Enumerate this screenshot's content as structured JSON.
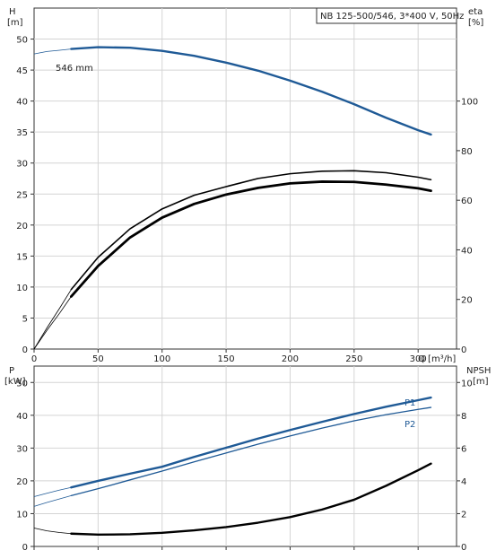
{
  "chart_data": {
    "type": "line",
    "title": "NB 125-500/546, 3*400 V, 50Hz",
    "colors": {
      "blue": "#1f5a96",
      "black": "#000000",
      "grid": "#d4d4d4"
    },
    "panels": [
      {
        "id": "top",
        "x_axis": {
          "label": "Q [m³/h]",
          "ticks": [
            0,
            50,
            100,
            150,
            200,
            250,
            300
          ],
          "range": [
            0,
            330
          ]
        },
        "left_axis": {
          "label_line1": "H",
          "label_line2": "[m]",
          "ticks": [
            0,
            5,
            10,
            15,
            20,
            25,
            30,
            35,
            40,
            45,
            50
          ],
          "range": [
            0,
            55
          ]
        },
        "right_axis": {
          "label_line1": "eta",
          "label_line2": "[%]",
          "ticks": [
            0,
            20,
            40,
            60,
            80,
            100
          ],
          "range": [
            0,
            137.5
          ]
        },
        "annotation": "546 mm",
        "series": [
          {
            "axis": "left",
            "color": "#1f5a96",
            "width": 2.4,
            "thin_x": [
              0,
              10,
              20,
              29
            ],
            "thin_y": [
              47.6,
              48.0,
              48.2,
              48.4
            ],
            "x": [
              29,
              50,
              75,
              100,
              125,
              150,
              175,
              200,
              225,
              250,
              275,
              300,
              310
            ],
            "y": [
              48.4,
              48.7,
              48.6,
              48.1,
              47.3,
              46.2,
              44.9,
              43.3,
              41.5,
              39.5,
              37.3,
              35.3,
              34.6
            ]
          },
          {
            "axis": "right",
            "color": "#000000",
            "width": 1.6,
            "thin_x": [
              0,
              10,
              20,
              29
            ],
            "thin_y": [
              0,
              8.5,
              16.5,
              24
            ],
            "x": [
              29,
              50,
              75,
              100,
              125,
              150,
              175,
              200,
              225,
              250,
              275,
              300,
              310
            ],
            "y": [
              24,
              37,
              48.5,
              56.5,
              62,
              65.5,
              68.8,
              70.7,
              71.7,
              71.9,
              71.1,
              69.3,
              68.3
            ]
          },
          {
            "axis": "right",
            "color": "#000000",
            "width": 2.8,
            "thin_x": [
              0,
              10,
              20,
              29
            ],
            "thin_y": [
              0,
              7.5,
              14.5,
              21.2
            ],
            "x": [
              29,
              50,
              75,
              100,
              125,
              150,
              175,
              200,
              225,
              250,
              275,
              300,
              310
            ],
            "y": [
              21.2,
              33.5,
              45,
              53,
              58.5,
              62.3,
              65,
              66.8,
              67.5,
              67.4,
              66.3,
              64.8,
              63.8
            ]
          }
        ]
      },
      {
        "id": "bottom",
        "x_axis": {
          "ticks": [
            0,
            50,
            100,
            150,
            200,
            250,
            300
          ],
          "range": [
            0,
            330
          ]
        },
        "left_axis": {
          "label_line1": "P",
          "label_line2": "[kW]",
          "ticks": [
            0,
            10,
            20,
            30,
            40,
            50
          ],
          "range": [
            0,
            55
          ]
        },
        "right_axis": {
          "label_line1": "NPSH",
          "label_line2": "[m]",
          "ticks": [
            0,
            2,
            4,
            6,
            8,
            10
          ],
          "range": [
            0,
            11
          ]
        },
        "series": [
          {
            "name": "P1",
            "axis": "left",
            "color": "#1f5a96",
            "width": 2.4,
            "thin_x": [
              0,
              10,
              20,
              29
            ],
            "thin_y": [
              15.2,
              16.2,
              17.2,
              18.0
            ],
            "x": [
              29,
              50,
              75,
              100,
              125,
              150,
              175,
              200,
              225,
              250,
              275,
              300,
              310
            ],
            "y": [
              18.0,
              20.0,
              22.2,
              24.3,
              27.3,
              30.1,
              32.9,
              35.5,
              38.0,
              40.4,
              42.6,
              44.6,
              45.4
            ]
          },
          {
            "name": "P2",
            "axis": "left",
            "color": "#1f5a96",
            "width": 1.3,
            "thin_x": [
              0,
              10,
              20,
              29
            ],
            "thin_y": [
              12.2,
              13.4,
              14.5,
              15.5
            ],
            "x": [
              29,
              50,
              75,
              100,
              125,
              150,
              175,
              200,
              225,
              250,
              275,
              300,
              310
            ],
            "y": [
              15.5,
              17.6,
              20.3,
              23.0,
              25.8,
              28.5,
              31.2,
              33.7,
              36.1,
              38.3,
              40.2,
              41.8,
              42.4
            ]
          },
          {
            "axis": "right",
            "color": "#000000",
            "width": 2.4,
            "thin_x": [
              0,
              10,
              20,
              29
            ],
            "thin_y": [
              1.12,
              0.95,
              0.85,
              0.78
            ],
            "x": [
              29,
              50,
              75,
              100,
              125,
              150,
              175,
              200,
              225,
              250,
              275,
              300,
              310
            ],
            "y": [
              0.78,
              0.72,
              0.74,
              0.83,
              0.98,
              1.18,
              1.45,
              1.79,
              2.25,
              2.85,
              3.7,
              4.65,
              5.05
            ]
          }
        ]
      }
    ]
  }
}
